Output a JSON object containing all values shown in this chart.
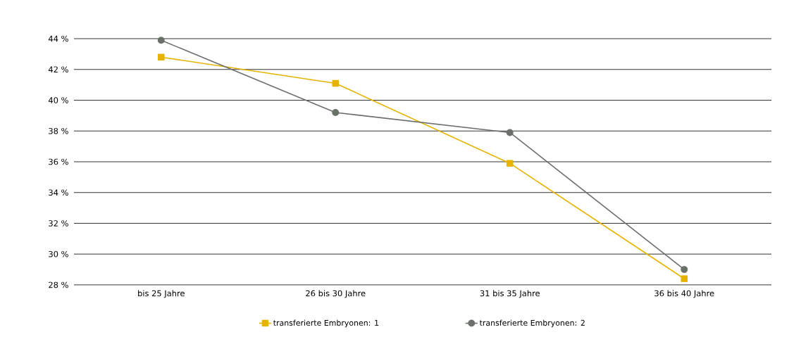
{
  "chart_data": {
    "type": "line",
    "categories": [
      "bis 25 Jahre",
      "26 bis 30 Jahre",
      "31 bis 35 Jahre",
      "36 bis 40 Jahre"
    ],
    "series": [
      {
        "name": "transferierte Embryonen: 1",
        "color": "#e6b400",
        "marker": "square",
        "values": [
          42.8,
          41.1,
          35.9,
          28.4
        ]
      },
      {
        "name": "transferierte Embryonen: 2",
        "color": "#6b706b",
        "marker": "circle",
        "values": [
          43.9,
          39.2,
          37.9,
          29.0
        ]
      }
    ],
    "ylim": [
      28,
      44
    ],
    "yticks": [
      {
        "value": 28,
        "label": "28 %"
      },
      {
        "value": 30,
        "label": "30 %"
      },
      {
        "value": 32,
        "label": "32 %"
      },
      {
        "value": 34,
        "label": "34 %"
      },
      {
        "value": 36,
        "label": "36 %"
      },
      {
        "value": 38,
        "label": "38 %"
      },
      {
        "value": 40,
        "label": "40 %"
      },
      {
        "value": 42,
        "label": "42 %"
      },
      {
        "value": 44,
        "label": "44 %"
      }
    ],
    "grid": "y",
    "legend": "bottom",
    "line_style": "solid"
  }
}
